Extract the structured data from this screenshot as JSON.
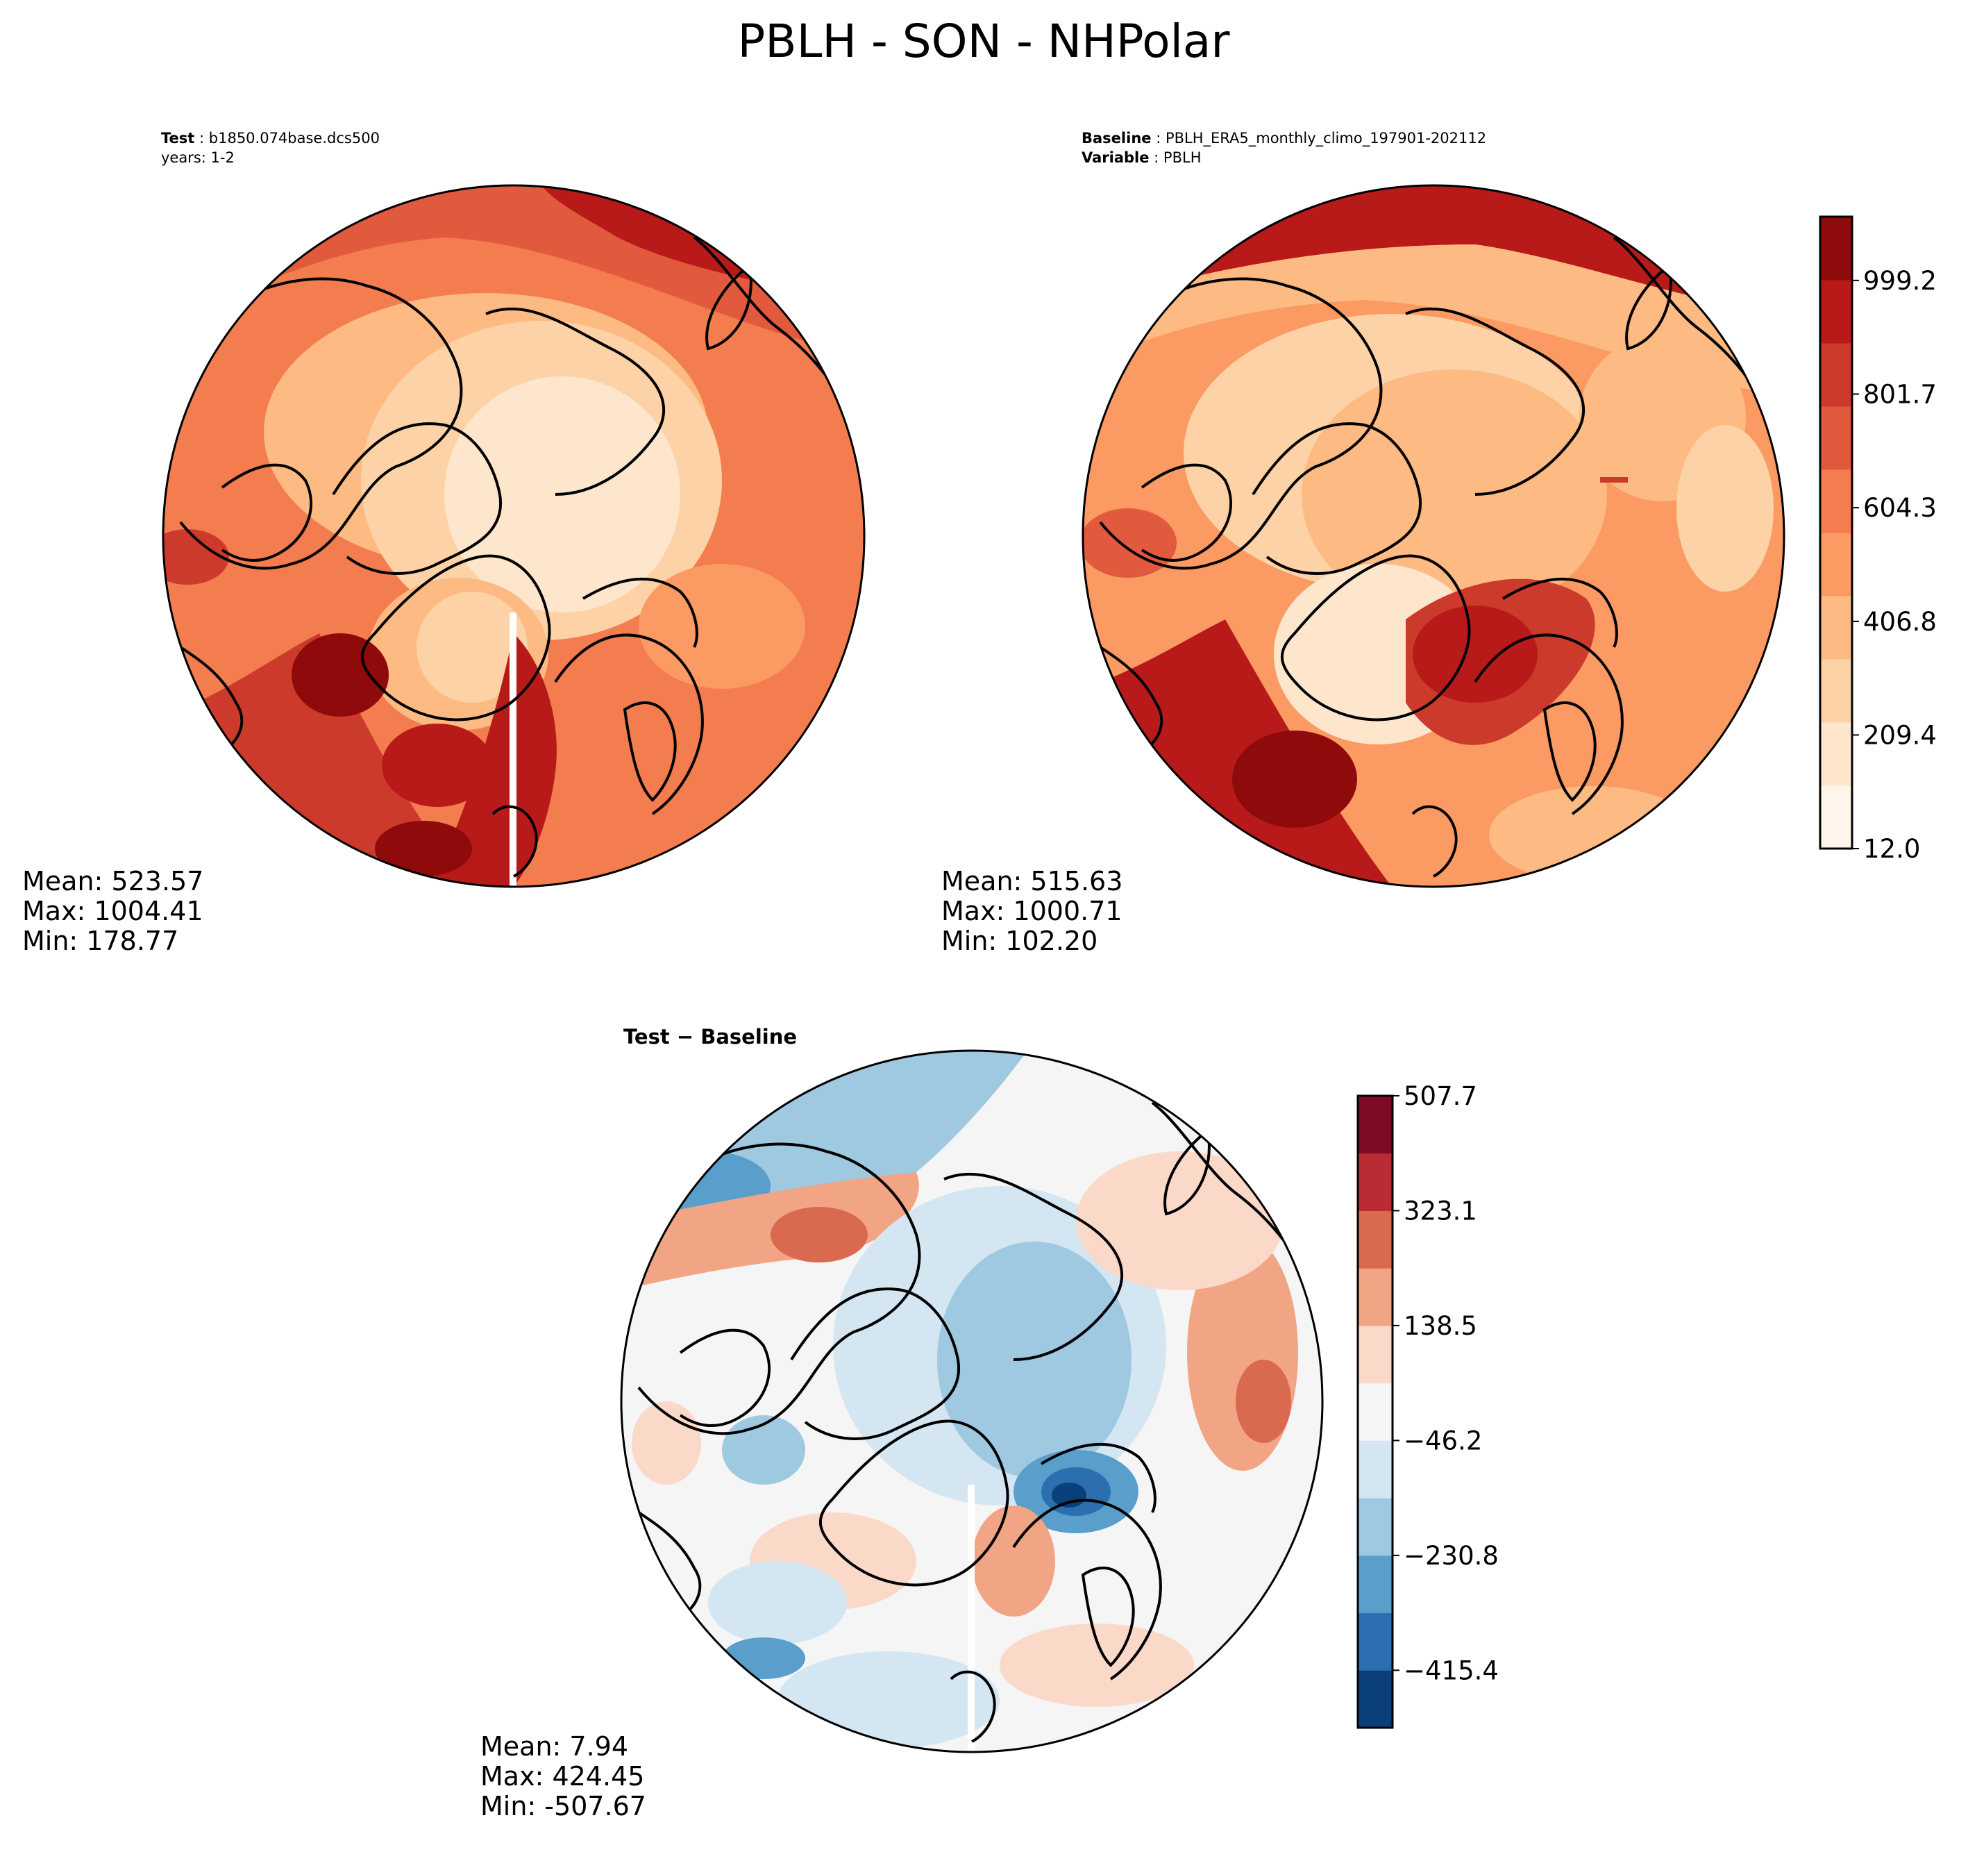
{
  "title": "PBLH - SON - NHPolar",
  "colors": {
    "abs_scale": [
      "#fff5eb",
      "#fee6cd",
      "#fdd2a6",
      "#fdba82",
      "#fb9a62",
      "#f37d4f",
      "#e15a3d",
      "#cc3a2b",
      "#b81a1a",
      "#8f0a0a"
    ],
    "diff_scale": [
      "#0b3f7a",
      "#2b6fb1",
      "#5a9ecb",
      "#9ec9e1",
      "#d4e6f2",
      "#f5f5f5",
      "#fbd9c9",
      "#f2a585",
      "#d9694f",
      "#bb2b34",
      "#7d0b23"
    ],
    "ocean_line": "#000000"
  },
  "panels": {
    "test": {
      "heading_bold": "Test",
      "heading_sep": " : ",
      "heading_value": "b1850.074base.dcs500",
      "line2": "years: 1-2",
      "stats": {
        "mean": "Mean: 523.57",
        "max": "Max: 1004.41",
        "min": "Min: 178.77"
      }
    },
    "baseline": {
      "heading_bold": "Baseline",
      "heading_sep": " : ",
      "heading_value": "PBLH_ERA5_monthly_climo_197901-202112",
      "line2_bold": "Variable",
      "line2_sep": " : ",
      "line2_value": "PBLH",
      "stats": {
        "mean": "Mean: 515.63",
        "max": "Max: 1000.71",
        "min": "Min: 102.20"
      }
    },
    "diff": {
      "heading": "Test − Baseline",
      "stats": {
        "mean": "Mean:  7.94",
        "max": "Max: 424.45",
        "min": "Min: -507.67"
      }
    }
  },
  "chart_data": [
    {
      "type": "heatmap",
      "name": "test_map",
      "projection": "north-polar-stereographic",
      "variable": "PBLH",
      "season": "SON",
      "stats": {
        "mean": 523.57,
        "max": 1004.41,
        "min": 178.77
      },
      "colorbar_shared_with": "baseline_map"
    },
    {
      "type": "heatmap",
      "name": "baseline_map",
      "projection": "north-polar-stereographic",
      "variable": "PBLH",
      "season": "SON",
      "stats": {
        "mean": 515.63,
        "max": 1000.71,
        "min": 102.2
      },
      "colorbar": {
        "tick_labels": [
          "12.0",
          "209.4",
          "406.8",
          "604.3",
          "801.7",
          "999.2"
        ],
        "ticks": [
          12.0,
          209.4,
          406.8,
          604.3,
          801.7,
          999.2
        ],
        "levels": 11,
        "range": [
          12.0,
          1110.0
        ],
        "position": "right"
      }
    },
    {
      "type": "heatmap",
      "name": "difference_map",
      "projection": "north-polar-stereographic",
      "variable": "PBLH",
      "season": "SON",
      "stats": {
        "mean": 7.94,
        "max": 424.45,
        "min": -507.67
      },
      "colorbar": {
        "tick_labels": [
          "−415.4",
          "−230.8",
          "−46.2",
          "138.5",
          "323.1",
          "507.7"
        ],
        "ticks": [
          -415.4,
          -230.8,
          -46.2,
          138.5,
          323.1,
          507.7
        ],
        "levels": 12,
        "range": [
          -507.7,
          507.7
        ],
        "position": "right"
      }
    }
  ]
}
